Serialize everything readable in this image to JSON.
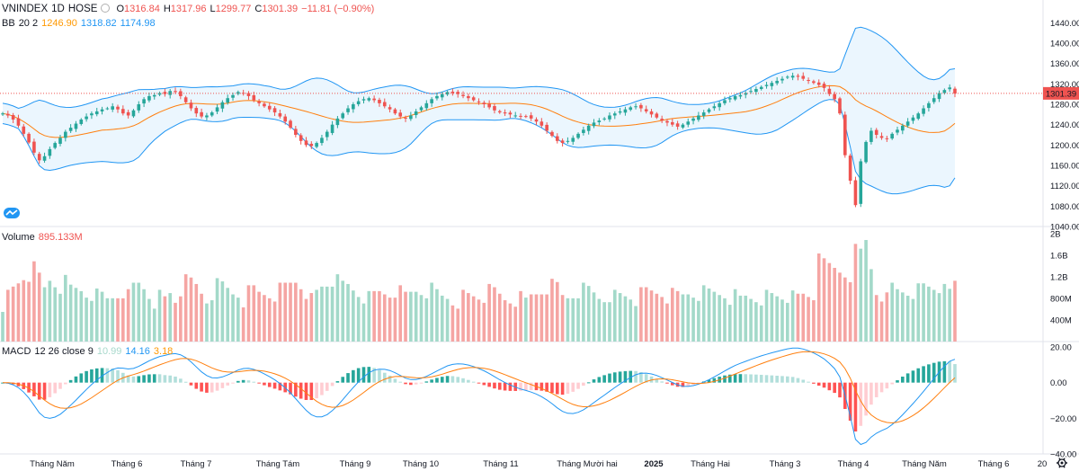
{
  "header": {
    "symbol": "VNINDEX",
    "interval": "1D",
    "exchange": "HOSE",
    "o_label": "O",
    "o_value": "1316.84",
    "h_label": "H",
    "h_value": "1317.96",
    "l_label": "L",
    "l_value": "1299.77",
    "c_label": "C",
    "c_value": "1301.39",
    "change": "−11.81 (−0.90%)"
  },
  "bb_legend": {
    "name": "BB",
    "params": "20 2",
    "basis": "1246.90",
    "upper": "1318.82",
    "lower": "1174.98"
  },
  "volume_legend": {
    "name": "Volume",
    "value": "895.133M"
  },
  "macd_legend": {
    "name": "MACD",
    "params": "12 26 close 9",
    "histogram": "10.99",
    "macd": "14.16",
    "signal": "3.18"
  },
  "price_tag": "1301.39",
  "colors": {
    "up": "#26a69a",
    "down": "#ef5350",
    "bb_band": "#2196f3",
    "bb_basis": "#ff7f0e",
    "bb_fill": "#e3f2fd",
    "vol_up": "#a3d9c9",
    "vol_down": "#f5a5a3",
    "macd_line": "#2196f3",
    "signal_line": "#ff7f0e"
  },
  "x_labels": [
    "Tháng Năm",
    "Tháng 6",
    "Tháng 7",
    "Tháng Tám",
    "Tháng 9",
    "Tháng 10",
    "Tháng 11",
    "Tháng Mười hai",
    "2025",
    "Tháng Hai",
    "Tháng 3",
    "Tháng 4",
    "Tháng Năm",
    "Tháng 6",
    "20"
  ],
  "chart_data": [
    {
      "type": "candlestick",
      "title": "VNINDEX 1D HOSE",
      "y_ticks": [
        "1440.00",
        "1400.00",
        "1360.00",
        "1320.00",
        "1280.00",
        "1240.00",
        "1200.00",
        "1160.00",
        "1120.00",
        "1080.00",
        "1040.00"
      ],
      "ylim": [
        1040,
        1460
      ],
      "last_close": 1301.39,
      "close_approx": [
        1262,
        1258,
        1250,
        1238,
        1222,
        1205,
        1185,
        1170,
        1178,
        1192,
        1204,
        1214,
        1226,
        1234,
        1242,
        1250,
        1256,
        1262,
        1266,
        1270,
        1272,
        1276,
        1270,
        1262,
        1258,
        1268,
        1280,
        1290,
        1296,
        1298,
        1302,
        1300,
        1306,
        1304,
        1296,
        1284,
        1272,
        1262,
        1256,
        1258,
        1264,
        1274,
        1284,
        1292,
        1298,
        1304,
        1302,
        1296,
        1288,
        1282,
        1276,
        1270,
        1264,
        1256,
        1246,
        1234,
        1220,
        1208,
        1200,
        1198,
        1204,
        1214,
        1226,
        1240,
        1252,
        1262,
        1272,
        1280,
        1286,
        1290,
        1292,
        1288,
        1282,
        1276,
        1270,
        1262,
        1256,
        1252,
        1258,
        1266,
        1274,
        1282,
        1290,
        1296,
        1300,
        1304,
        1302,
        1300,
        1296,
        1292,
        1288,
        1284,
        1280,
        1274,
        1268,
        1264,
        1262,
        1260,
        1258,
        1256,
        1256,
        1252,
        1246,
        1238,
        1228,
        1218,
        1208,
        1204,
        1208,
        1214,
        1222,
        1230,
        1238,
        1244,
        1248,
        1252,
        1258,
        1262,
        1266,
        1270,
        1274,
        1276,
        1272,
        1266,
        1260,
        1254,
        1248,
        1244,
        1240,
        1236,
        1240,
        1246,
        1252,
        1258,
        1264,
        1270,
        1276,
        1282,
        1288,
        1292,
        1296,
        1298,
        1302,
        1306,
        1310,
        1314,
        1318,
        1322,
        1326,
        1330,
        1334,
        1336,
        1334,
        1330,
        1326,
        1322,
        1318,
        1312,
        1300,
        1290,
        1262,
        1180,
        1130,
        1082,
        1168,
        1206,
        1228,
        1220,
        1214,
        1212,
        1222,
        1230,
        1238,
        1246,
        1254,
        1262,
        1272,
        1282,
        1292,
        1302,
        1308,
        1313,
        1301
      ]
    },
    {
      "type": "bar",
      "title": "Volume",
      "y_ticks": [
        "2B",
        "1.6B",
        "1.2B",
        "800M",
        "400M"
      ],
      "ylim": [
        0,
        2000000000
      ],
      "last_value": "895.133M"
    },
    {
      "type": "line",
      "title": "MACD 12 26 close 9",
      "y_ticks": [
        "20.00",
        "0.00",
        "−20.00",
        "−40.00"
      ],
      "ylim": [
        -40,
        20
      ],
      "series": [
        {
          "name": "MACD",
          "last": 14.16
        },
        {
          "name": "Signal",
          "last": 3.18
        },
        {
          "name": "Histogram",
          "last": 10.99
        }
      ]
    }
  ]
}
